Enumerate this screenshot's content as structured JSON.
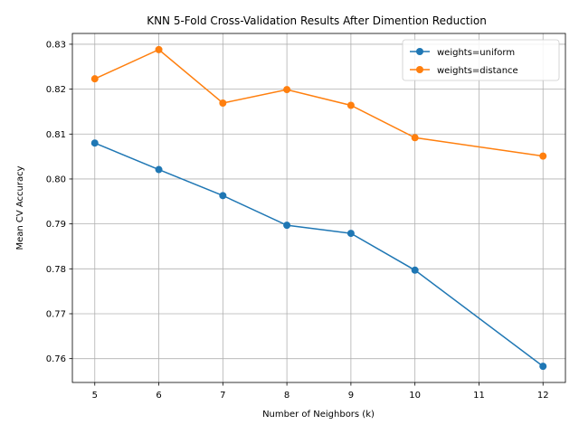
{
  "chart_data": {
    "type": "line",
    "title": "KNN 5-Fold Cross-Validation Results After Dimention Reduction",
    "xlabel": "Number of Neighbors (k)",
    "ylabel": "Mean CV Accuracy",
    "x": [
      5,
      6,
      7,
      8,
      9,
      10,
      12
    ],
    "xticks": [
      "5",
      "6",
      "7",
      "8",
      "9",
      "10",
      "11",
      "12"
    ],
    "xtick_values": [
      5,
      6,
      7,
      8,
      9,
      10,
      11,
      12
    ],
    "yticks": [
      "0.76",
      "0.77",
      "0.78",
      "0.79",
      "0.80",
      "0.81",
      "0.82",
      "0.83"
    ],
    "ytick_values": [
      0.76,
      0.77,
      0.78,
      0.79,
      0.8,
      0.81,
      0.82,
      0.83
    ],
    "xlim": [
      4.65,
      12.35
    ],
    "ylim": [
      0.7547,
      0.8324
    ],
    "grid": true,
    "legend_position": "top-right",
    "series": [
      {
        "name": "weights=uniform",
        "color": "#1f77b4",
        "values": [
          0.808,
          0.8021,
          0.7963,
          0.7897,
          0.7879,
          0.7797,
          0.7583
        ]
      },
      {
        "name": "weights=distance",
        "color": "#ff7f0e",
        "values": [
          0.8223,
          0.8288,
          0.8169,
          0.8199,
          0.8164,
          0.8092,
          0.8051
        ]
      }
    ]
  }
}
